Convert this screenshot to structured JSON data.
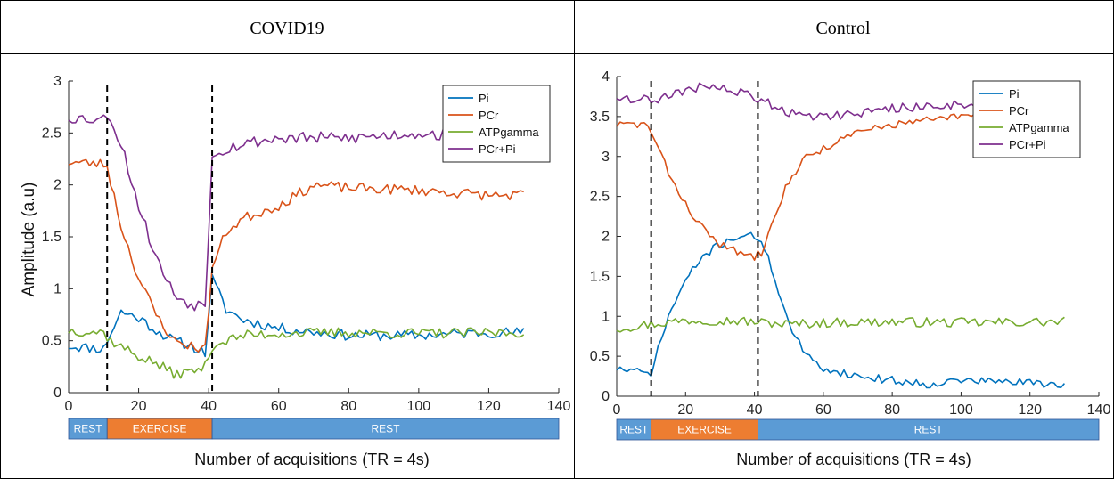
{
  "panels": [
    {
      "title": "COVID19",
      "xlabel": "Number of acquisitions (TR = 4s)",
      "ylabel": "Amplitude (a.u)"
    },
    {
      "title": "Control",
      "xlabel": "Number of acquisitions (TR = 4s)",
      "ylabel": ""
    }
  ],
  "chart_data": [
    {
      "type": "line",
      "title": "COVID19",
      "xlabel": "Number of acquisitions (TR = 4s)",
      "ylabel": "Amplitude (a.u)",
      "xlim": [
        0,
        140
      ],
      "ylim": [
        0,
        3
      ],
      "xticks": [
        0,
        20,
        40,
        60,
        80,
        100,
        120,
        140
      ],
      "yticks": [
        0,
        0.5,
        1,
        1.5,
        2,
        2.5,
        3
      ],
      "ytick_labels": [
        "0",
        "0.5",
        "1",
        "1.5",
        "2",
        "2.5",
        "3"
      ],
      "legend_position": "top-right",
      "grid": false,
      "vlines": [
        11,
        41
      ],
      "phases": [
        {
          "label": "REST",
          "start": 0,
          "end": 11,
          "color": "#5b9bd5"
        },
        {
          "label": "EXERCISE",
          "start": 11,
          "end": 41,
          "color": "#ed7d31"
        },
        {
          "label": "REST",
          "start": 41,
          "end": 140,
          "color": "#5b9bd5"
        }
      ],
      "series_keypoints": [
        {
          "name": "Pi",
          "color": "#0072BD",
          "amp": 0.05,
          "seed": 11,
          "points": [
            [
              0,
              0.45
            ],
            [
              10,
              0.42
            ],
            [
              11,
              0.5
            ],
            [
              15,
              0.78
            ],
            [
              20,
              0.72
            ],
            [
              25,
              0.6
            ],
            [
              30,
              0.5
            ],
            [
              35,
              0.45
            ],
            [
              39,
              0.38
            ],
            [
              41,
              1.1
            ],
            [
              45,
              0.8
            ],
            [
              50,
              0.7
            ],
            [
              60,
              0.62
            ],
            [
              80,
              0.55
            ],
            [
              100,
              0.55
            ],
            [
              120,
              0.58
            ],
            [
              130,
              0.58
            ]
          ]
        },
        {
          "name": "PCr",
          "color": "#D95319",
          "amp": 0.05,
          "seed": 23,
          "points": [
            [
              0,
              2.22
            ],
            [
              10,
              2.2
            ],
            [
              11,
              2.18
            ],
            [
              15,
              1.6
            ],
            [
              20,
              1.1
            ],
            [
              25,
              0.75
            ],
            [
              30,
              0.5
            ],
            [
              35,
              0.45
            ],
            [
              39,
              0.42
            ],
            [
              41,
              1.2
            ],
            [
              45,
              1.55
            ],
            [
              50,
              1.68
            ],
            [
              60,
              1.8
            ],
            [
              70,
              2.0
            ],
            [
              80,
              1.97
            ],
            [
              100,
              1.95
            ],
            [
              120,
              1.9
            ],
            [
              130,
              1.9
            ]
          ]
        },
        {
          "name": "ATPgamma",
          "color": "#77AC30",
          "amp": 0.05,
          "seed": 37,
          "points": [
            [
              0,
              0.6
            ],
            [
              10,
              0.58
            ],
            [
              12,
              0.5
            ],
            [
              20,
              0.35
            ],
            [
              25,
              0.28
            ],
            [
              30,
              0.18
            ],
            [
              35,
              0.2
            ],
            [
              39,
              0.25
            ],
            [
              41,
              0.45
            ],
            [
              45,
              0.5
            ],
            [
              50,
              0.55
            ],
            [
              60,
              0.57
            ],
            [
              80,
              0.58
            ],
            [
              100,
              0.57
            ],
            [
              130,
              0.58
            ]
          ]
        },
        {
          "name": "PCr+Pi",
          "color": "#7E2F8E",
          "amp": 0.06,
          "seed": 53,
          "points": [
            [
              0,
              2.65
            ],
            [
              10,
              2.63
            ],
            [
              11,
              2.7
            ],
            [
              15,
              2.4
            ],
            [
              20,
              1.8
            ],
            [
              25,
              1.3
            ],
            [
              30,
              0.95
            ],
            [
              35,
              0.85
            ],
            [
              39,
              0.85
            ],
            [
              41,
              2.3
            ],
            [
              45,
              2.35
            ],
            [
              50,
              2.4
            ],
            [
              60,
              2.45
            ],
            [
              80,
              2.45
            ],
            [
              100,
              2.5
            ],
            [
              120,
              2.45
            ],
            [
              130,
              2.45
            ]
          ]
        }
      ]
    },
    {
      "type": "line",
      "title": "Control",
      "xlabel": "Number of acquisitions (TR = 4s)",
      "ylabel": "",
      "xlim": [
        0,
        140
      ],
      "ylim": [
        0,
        4
      ],
      "xticks": [
        0,
        20,
        40,
        60,
        80,
        100,
        120,
        140
      ],
      "yticks": [
        0,
        0.5,
        1,
        1.5,
        2,
        2.5,
        3,
        3.5,
        4
      ],
      "ytick_labels": [
        "0",
        "0.5",
        "1",
        "1.5",
        "2",
        "2.5",
        "3",
        "3.5",
        "4"
      ],
      "legend_position": "top-right",
      "grid": false,
      "vlines": [
        10,
        41
      ],
      "phases": [
        {
          "label": "REST",
          "start": 0,
          "end": 10,
          "color": "#5b9bd5"
        },
        {
          "label": "EXERCISE",
          "start": 10,
          "end": 41,
          "color": "#ed7d31"
        },
        {
          "label": "REST",
          "start": 41,
          "end": 140,
          "color": "#5b9bd5"
        }
      ],
      "series_keypoints": [
        {
          "name": "Pi",
          "color": "#0072BD",
          "amp": 0.05,
          "seed": 71,
          "points": [
            [
              0,
              0.35
            ],
            [
              9,
              0.28
            ],
            [
              10,
              0.3
            ],
            [
              15,
              1.0
            ],
            [
              20,
              1.45
            ],
            [
              25,
              1.75
            ],
            [
              30,
              1.9
            ],
            [
              35,
              2.0
            ],
            [
              40,
              2.0
            ],
            [
              42,
              1.95
            ],
            [
              45,
              1.6
            ],
            [
              50,
              0.9
            ],
            [
              55,
              0.5
            ],
            [
              60,
              0.35
            ],
            [
              70,
              0.25
            ],
            [
              80,
              0.2
            ],
            [
              90,
              0.15
            ],
            [
              100,
              0.2
            ],
            [
              120,
              0.17
            ],
            [
              130,
              0.15
            ]
          ]
        },
        {
          "name": "PCr",
          "color": "#D95319",
          "amp": 0.05,
          "seed": 83,
          "points": [
            [
              0,
              3.4
            ],
            [
              9,
              3.4
            ],
            [
              10,
              3.3
            ],
            [
              15,
              2.8
            ],
            [
              20,
              2.4
            ],
            [
              25,
              2.1
            ],
            [
              30,
              1.9
            ],
            [
              35,
              1.8
            ],
            [
              40,
              1.75
            ],
            [
              42,
              1.8
            ],
            [
              45,
              2.2
            ],
            [
              50,
              2.7
            ],
            [
              55,
              3.0
            ],
            [
              60,
              3.1
            ],
            [
              70,
              3.3
            ],
            [
              80,
              3.4
            ],
            [
              90,
              3.45
            ],
            [
              100,
              3.5
            ],
            [
              130,
              3.55
            ]
          ]
        },
        {
          "name": "ATPgamma",
          "color": "#77AC30",
          "amp": 0.06,
          "seed": 97,
          "points": [
            [
              0,
              0.85
            ],
            [
              10,
              0.9
            ],
            [
              20,
              0.95
            ],
            [
              30,
              0.95
            ],
            [
              40,
              0.93
            ],
            [
              50,
              0.9
            ],
            [
              60,
              0.92
            ],
            [
              80,
              0.93
            ],
            [
              100,
              0.92
            ],
            [
              130,
              0.93
            ]
          ]
        },
        {
          "name": "PCr+Pi",
          "color": "#7E2F8E",
          "amp": 0.06,
          "seed": 109,
          "points": [
            [
              0,
              3.75
            ],
            [
              10,
              3.7
            ],
            [
              20,
              3.8
            ],
            [
              25,
              3.9
            ],
            [
              30,
              3.85
            ],
            [
              40,
              3.75
            ],
            [
              45,
              3.65
            ],
            [
              50,
              3.55
            ],
            [
              60,
              3.5
            ],
            [
              80,
              3.6
            ],
            [
              100,
              3.65
            ],
            [
              130,
              3.65
            ]
          ]
        }
      ]
    }
  ]
}
